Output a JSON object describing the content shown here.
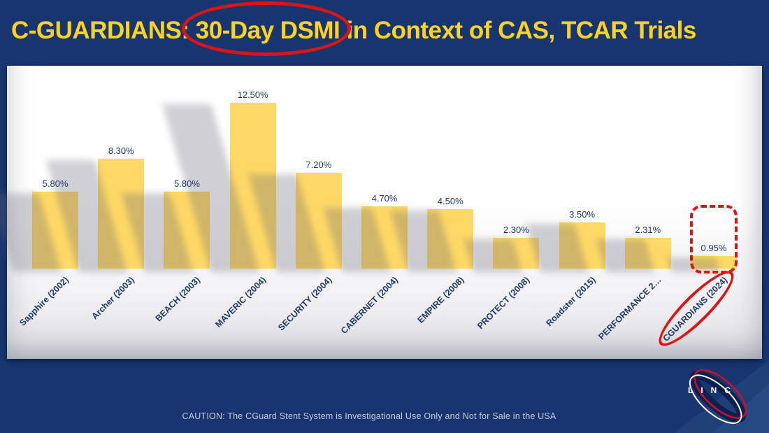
{
  "slide": {
    "title": {
      "pre": "C-GUARDIANS: ",
      "circled": "30-Day DSMI",
      "post": " in Context of CAS, TCAR Trials"
    },
    "caution": "CAUTION: The CGuard Stent System is Investigational Use Only and Not for Sale in the USA",
    "logo": "LINC"
  },
  "colors": {
    "background": "#17366f",
    "title": "#ffd21f",
    "panel": "#ffffff",
    "bar": "#ffd966",
    "label": "#1f3a68",
    "annotation": "#dc1414"
  },
  "chart_data": {
    "type": "bar",
    "title": "C-GUARDIANS: 30-Day DSMI in Context of CAS, TCAR Trials",
    "categories": [
      "Sapphire (2002)",
      "Archer (2003)",
      "BEACH (2003)",
      "MAVERIC (2004)",
      "SECURITY (2004)",
      "CABERNET (2004)",
      "EMPIRE (2008)",
      "PROTECT (2008)",
      "Roadster (2015)",
      "PERFORMANCE 2…",
      "CGUARDIANS (2024)"
    ],
    "values": [
      5.8,
      8.3,
      5.8,
      12.5,
      7.2,
      4.7,
      4.5,
      2.3,
      3.5,
      2.31,
      0.95
    ],
    "labels": [
      "5.80%",
      "8.30%",
      "5.80%",
      "12.50%",
      "7.20%",
      "4.70%",
      "4.50%",
      "2.30%",
      "3.50%",
      "2.31%",
      "0.95%"
    ],
    "xlabel": "",
    "ylabel": "",
    "ylim": [
      0,
      13
    ],
    "grid": false,
    "legend": false,
    "highlight_index": 10,
    "annotations": [
      "red ellipse around title phrase 30-Day DSMI",
      "red dashed rounded box around CGUARDIANS bar value 0.95%",
      "red ellipse around CGUARDIANS (2024) axis label"
    ]
  }
}
